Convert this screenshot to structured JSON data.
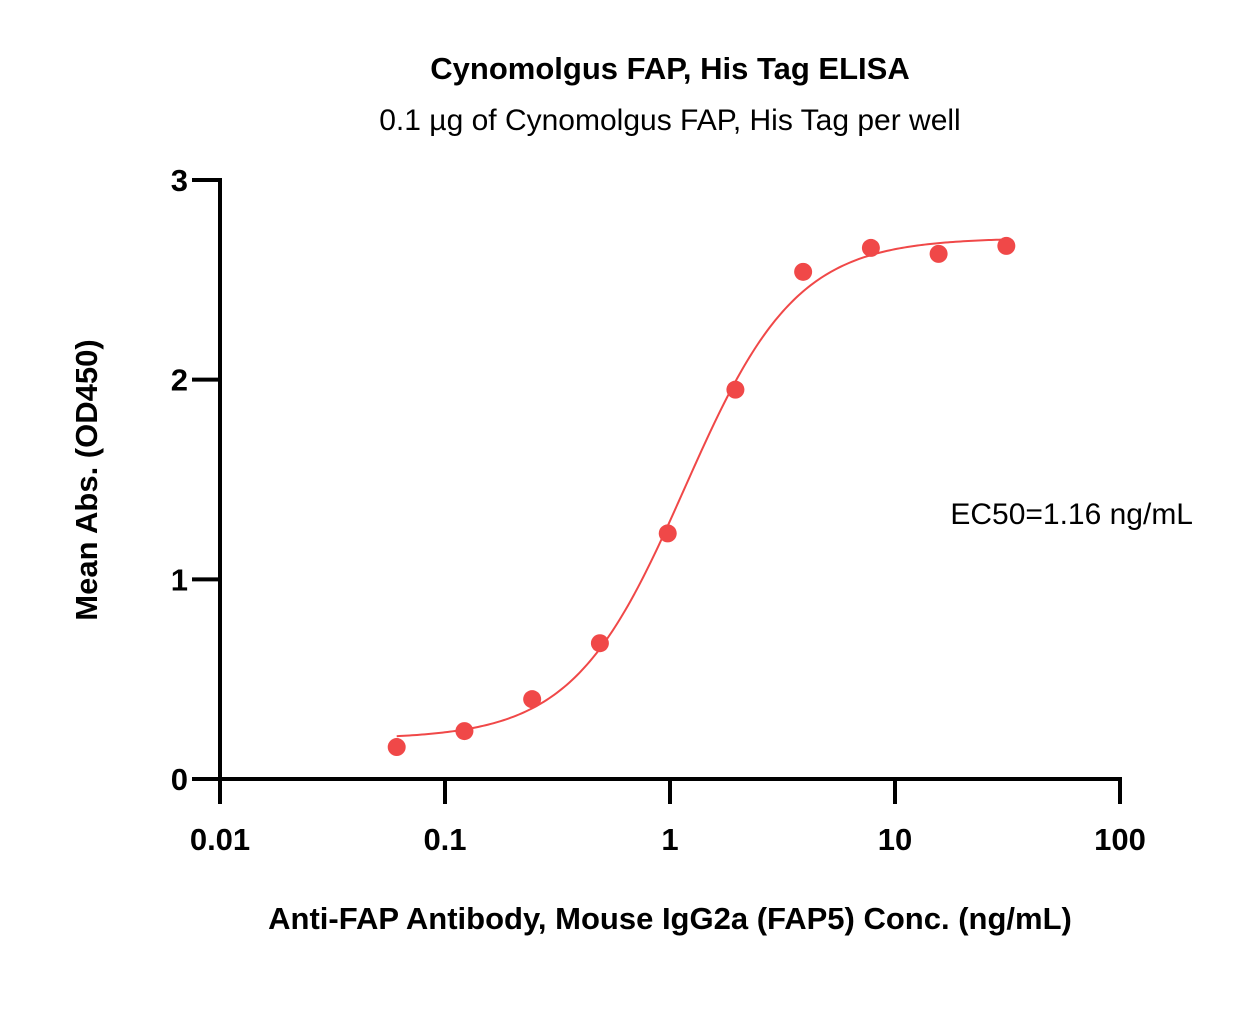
{
  "chart_data": {
    "type": "scatter",
    "title": "Cynomolgus FAP, His Tag ELISA",
    "subtitle": "0.1 µg of Cynomolgus FAP, His Tag per well",
    "xlabel": "Anti-FAP Antibody, Mouse IgG2a (FAP5) Conc. (ng/mL)",
    "ylabel": "Mean Abs. (OD450)",
    "x_scale": "log",
    "xlim": [
      0.01,
      100
    ],
    "ylim": [
      0,
      3
    ],
    "x_ticks": [
      0.01,
      0.1,
      1,
      10,
      100
    ],
    "x_tick_labels": [
      "0.01",
      "0.1",
      "1",
      "10",
      "100"
    ],
    "y_ticks": [
      0,
      1,
      2,
      3
    ],
    "y_tick_labels": [
      "0",
      "1",
      "2",
      "3"
    ],
    "grid": false,
    "color": "#f04848",
    "annotation": "EC50=1.16 ng/mL",
    "series": [
      {
        "x": [
          0.061,
          0.122,
          0.244,
          0.488,
          0.977,
          1.953,
          3.906,
          7.813,
          15.625,
          31.25
        ],
        "y": [
          0.16,
          0.24,
          0.4,
          0.68,
          1.23,
          1.95,
          2.54,
          2.66,
          2.63,
          2.67
        ]
      }
    ],
    "fit": {
      "model": "4PL",
      "bottom": 0.2,
      "top": 2.71,
      "ec50": 1.16,
      "hill": 1.75,
      "x_range": [
        0.061,
        31.25
      ]
    }
  }
}
